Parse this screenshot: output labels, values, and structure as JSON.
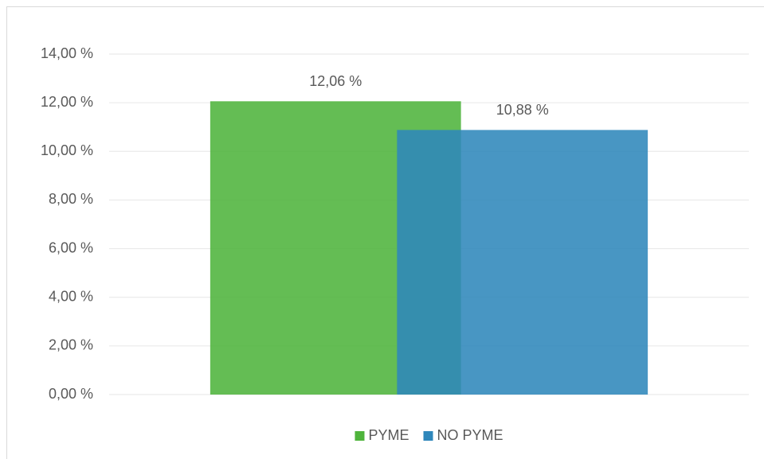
{
  "chart_data": {
    "type": "bar",
    "categories": [
      null
    ],
    "series": [
      {
        "name": "PYME",
        "color": "#4fb43c",
        "values": [
          12.06
        ],
        "value_labels": [
          "12,06 %"
        ]
      },
      {
        "name": "NO PYME",
        "color": "#2f87bb",
        "values": [
          10.88
        ],
        "value_labels": [
          "10,88 %"
        ]
      }
    ],
    "ylim": [
      0,
      14
    ],
    "yticks": [
      {
        "value": 0,
        "label": "0,00 %"
      },
      {
        "value": 2,
        "label": "2,00 %"
      },
      {
        "value": 4,
        "label": "4,00 %"
      },
      {
        "value": 6,
        "label": "6,00 %"
      },
      {
        "value": 8,
        "label": "8,00 %"
      },
      {
        "value": 10,
        "label": "10,00 %"
      },
      {
        "value": 12,
        "label": "12,00 %"
      },
      {
        "value": 14,
        "label": "14,00 %"
      }
    ],
    "grid": true,
    "legend": "bottom"
  }
}
